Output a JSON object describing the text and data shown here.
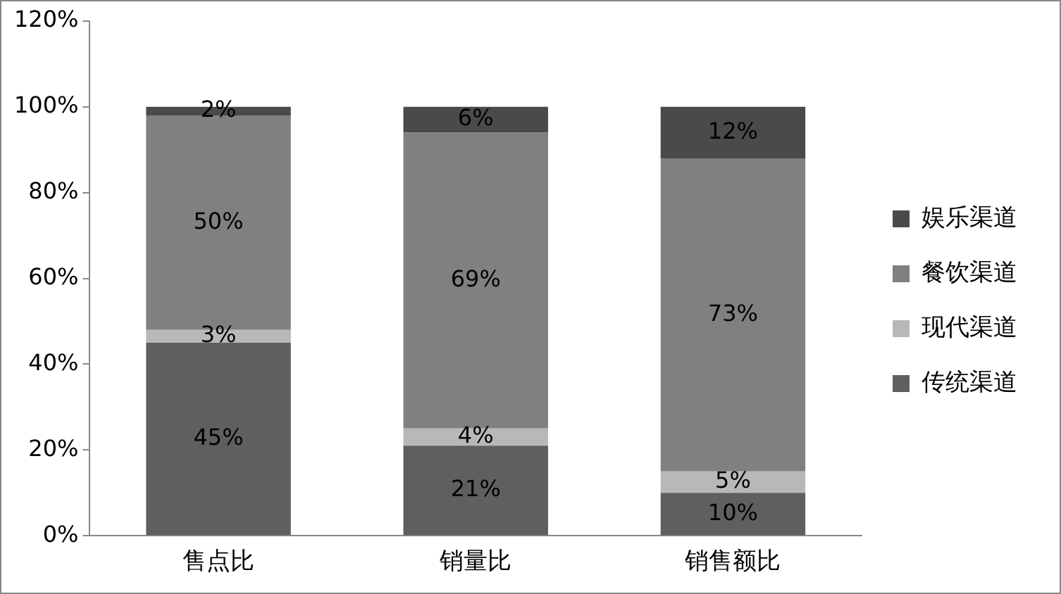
{
  "chart_data": {
    "type": "bar",
    "stacked": true,
    "categories": [
      "售点比",
      "销量比",
      "销售额比"
    ],
    "series": [
      {
        "name": "传统渠道",
        "color": "#5f5f5f",
        "values": [
          45,
          21,
          10
        ],
        "value_labels": [
          "45%",
          "21%",
          "10%"
        ]
      },
      {
        "name": "现代渠道",
        "color": "#b8b8b8",
        "values": [
          3,
          4,
          5
        ],
        "value_labels": [
          "3%",
          "4%",
          "5%"
        ]
      },
      {
        "name": "餐饮渠道",
        "color": "#808080",
        "values": [
          50,
          69,
          73
        ],
        "value_labels": [
          "50%",
          "69%",
          "73%"
        ]
      },
      {
        "name": "娱乐渠道",
        "color": "#4a4a4a",
        "values": [
          2,
          6,
          12
        ],
        "value_labels": [
          "2%",
          "6%",
          "12%"
        ]
      }
    ],
    "ylim": [
      0,
      120
    ],
    "yticks": [
      {
        "value": 0,
        "label": "0%"
      },
      {
        "value": 20,
        "label": "20%"
      },
      {
        "value": 40,
        "label": "40%"
      },
      {
        "value": 60,
        "label": "60%"
      },
      {
        "value": 80,
        "label": "80%"
      },
      {
        "value": 100,
        "label": "100%"
      },
      {
        "value": 120,
        "label": "120%"
      }
    ],
    "grid": false,
    "legend": "right"
  }
}
